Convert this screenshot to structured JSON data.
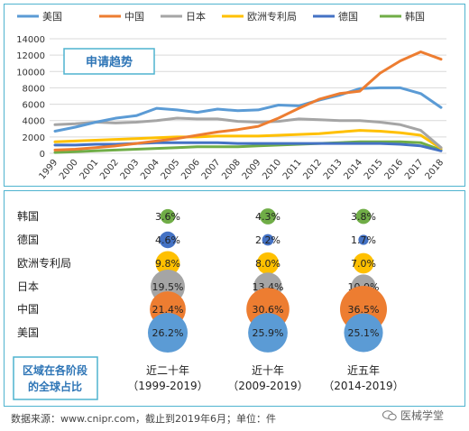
{
  "colors": {
    "us": "#5b9bd5",
    "cn": "#ed7d31",
    "jp": "#a5a5a5",
    "ep": "#ffc000",
    "de": "#4472c4",
    "kr": "#70ad47",
    "panel_border": "#4fb3cf",
    "title_text": "#2e75b6"
  },
  "chart_data": [
    {
      "type": "line",
      "title": "申请趋势",
      "x": [
        "1999",
        "2000",
        "2001",
        "2002",
        "2003",
        "2004",
        "2005",
        "2006",
        "2007",
        "2008",
        "2009",
        "2010",
        "2011",
        "2012",
        "2013",
        "2014",
        "2015",
        "2016",
        "2017",
        "2018"
      ],
      "ylim": [
        0,
        14000
      ],
      "yticks": [
        0,
        2000,
        4000,
        6000,
        8000,
        10000,
        12000,
        14000
      ],
      "grid": true,
      "legend": "top",
      "series": [
        {
          "key": "us",
          "name": "美国",
          "values": [
            2700,
            3200,
            3800,
            4300,
            4600,
            5500,
            5300,
            5000,
            5400,
            5200,
            5300,
            5900,
            5800,
            6500,
            7100,
            7900,
            8000,
            8000,
            7300,
            5600
          ]
        },
        {
          "key": "cn",
          "name": "中国",
          "values": [
            400,
            500,
            700,
            900,
            1200,
            1500,
            1800,
            2200,
            2600,
            2900,
            3300,
            4300,
            5500,
            6600,
            7300,
            7600,
            9800,
            11300,
            12400,
            11500
          ]
        },
        {
          "key": "jp",
          "name": "日本",
          "values": [
            3500,
            3600,
            3800,
            3700,
            3800,
            4000,
            4300,
            4200,
            4200,
            3900,
            3800,
            3900,
            4200,
            4100,
            4000,
            4000,
            3800,
            3500,
            2800,
            700
          ]
        },
        {
          "key": "ep",
          "name": "欧洲专利局",
          "values": [
            1400,
            1500,
            1600,
            1700,
            1800,
            1900,
            2000,
            2000,
            2100,
            2100,
            2100,
            2200,
            2300,
            2400,
            2600,
            2800,
            2700,
            2500,
            2200,
            600
          ]
        },
        {
          "key": "de",
          "name": "德国",
          "values": [
            1000,
            1000,
            1100,
            1100,
            1200,
            1300,
            1300,
            1300,
            1300,
            1200,
            1200,
            1200,
            1200,
            1200,
            1200,
            1200,
            1200,
            1100,
            900,
            300
          ]
        },
        {
          "key": "kr",
          "name": "韩国",
          "values": [
            100,
            200,
            300,
            400,
            500,
            600,
            700,
            800,
            800,
            800,
            900,
            1000,
            1100,
            1200,
            1300,
            1400,
            1400,
            1400,
            1300,
            400
          ]
        }
      ]
    },
    {
      "type": "scatter",
      "categories": [
        "近二十年\n（1999-2019）",
        "近十年\n（2009-2019）",
        "近五年\n（2014-2019）"
      ],
      "series": [
        {
          "key": "kr",
          "name": "韩国",
          "values": [
            3.6,
            4.3,
            3.8
          ],
          "labels": [
            "3.6%",
            "4.3%",
            "3.8%"
          ]
        },
        {
          "key": "de",
          "name": "德国",
          "values": [
            4.6,
            2.2,
            1.7
          ],
          "labels": [
            "4.6%",
            "2.2%",
            "1.7%"
          ]
        },
        {
          "key": "ep",
          "name": "欧洲专利局",
          "values": [
            9.8,
            8.0,
            7.0
          ],
          "labels": [
            "9.8%",
            "8.0%",
            "7.0%"
          ]
        },
        {
          "key": "jp",
          "name": "日本",
          "values": [
            19.5,
            13.4,
            10.0
          ],
          "labels": [
            "19.5%",
            "13.4%",
            "10.0%"
          ]
        },
        {
          "key": "cn",
          "name": "中国",
          "values": [
            21.4,
            30.6,
            36.5
          ],
          "labels": [
            "21.4%",
            "30.6%",
            "36.5%"
          ]
        },
        {
          "key": "us",
          "name": "美国",
          "values": [
            26.2,
            25.9,
            25.1
          ],
          "labels": [
            "26.2%",
            "25.9%",
            "25.1%"
          ]
        }
      ],
      "callout": "区域在各阶段\n的全球占比"
    }
  ],
  "footer": "数据来源：www.cnipr.com，截止到2019年6月；单位：件",
  "watermark": "医械学堂"
}
